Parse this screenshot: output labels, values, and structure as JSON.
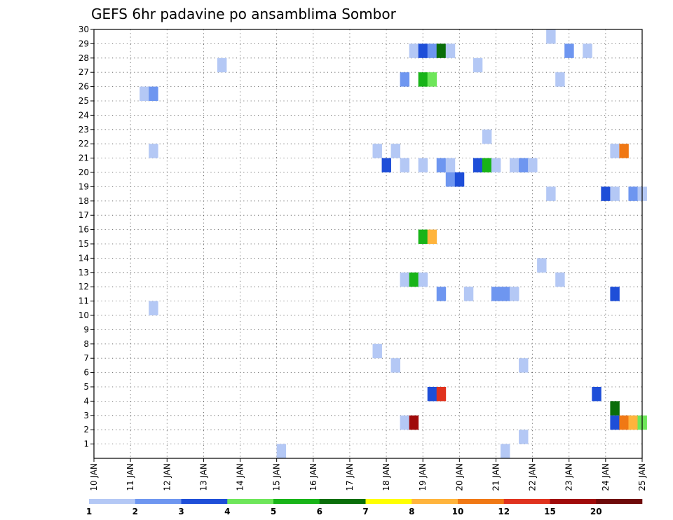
{
  "chart_data": {
    "type": "heatmap",
    "title": "GEFS 6hr padavine po ansamblima Sombor",
    "x_tick_labels": [
      "10 JAN",
      "11 JAN",
      "12 JAN",
      "13 JAN",
      "14 JAN",
      "15 JAN",
      "16 JAN",
      "17 JAN",
      "18 JAN",
      "19 JAN",
      "20 JAN",
      "21 JAN",
      "22 JAN",
      "23 JAN",
      "24 JAN",
      "25 JAN"
    ],
    "y_tick_labels": [
      "1",
      "2",
      "3",
      "4",
      "5",
      "6",
      "7",
      "8",
      "9",
      "10",
      "11",
      "12",
      "13",
      "14",
      "15",
      "16",
      "17",
      "18",
      "19",
      "20",
      "21",
      "22",
      "23",
      "24",
      "25",
      "26",
      "27",
      "28",
      "29",
      "30"
    ],
    "xlim": [
      0,
      60
    ],
    "ylim": [
      0,
      30
    ],
    "grid": true,
    "legend": {
      "position": "bottom",
      "colors": [
        "#b4c8f5",
        "#6e96f0",
        "#1e4ed8",
        "#6ee65a",
        "#18b418",
        "#0a6e0a",
        "#ffff00",
        "#ffb43c",
        "#f07814",
        "#e0321e",
        "#a00a0a",
        "#6e0a0a"
      ],
      "labels": [
        "1",
        "2",
        "3",
        "4",
        "5",
        "6",
        "7",
        "8",
        "10",
        "12",
        "15",
        "20"
      ]
    },
    "cells": [
      {
        "x": 5.0,
        "y": 25,
        "c": 0
      },
      {
        "x": 6.0,
        "y": 25,
        "c": 1
      },
      {
        "x": 6.0,
        "y": 21,
        "c": 0
      },
      {
        "x": 6.0,
        "y": 10,
        "c": 0
      },
      {
        "x": 13.5,
        "y": 27,
        "c": 0
      },
      {
        "x": 20.0,
        "y": 0,
        "c": 0
      },
      {
        "x": 30.5,
        "y": 21,
        "c": 0
      },
      {
        "x": 30.5,
        "y": 7,
        "c": 0
      },
      {
        "x": 31.5,
        "y": 20,
        "c": 2
      },
      {
        "x": 32.5,
        "y": 21,
        "c": 0
      },
      {
        "x": 32.5,
        "y": 6,
        "c": 0
      },
      {
        "x": 33.5,
        "y": 26,
        "c": 1
      },
      {
        "x": 33.5,
        "y": 20,
        "c": 0
      },
      {
        "x": 33.5,
        "y": 12,
        "c": 0
      },
      {
        "x": 33.5,
        "y": 2,
        "c": 0
      },
      {
        "x": 34.5,
        "y": 28,
        "c": 0
      },
      {
        "x": 34.5,
        "y": 12,
        "c": 4
      },
      {
        "x": 34.5,
        "y": 2,
        "c": 10
      },
      {
        "x": 35.5,
        "y": 28,
        "c": 2
      },
      {
        "x": 35.5,
        "y": 26,
        "c": 4
      },
      {
        "x": 35.5,
        "y": 20,
        "c": 0
      },
      {
        "x": 35.5,
        "y": 15,
        "c": 4
      },
      {
        "x": 35.5,
        "y": 12,
        "c": 0
      },
      {
        "x": 36.5,
        "y": 28,
        "c": 1
      },
      {
        "x": 36.5,
        "y": 26,
        "c": 3
      },
      {
        "x": 36.5,
        "y": 15,
        "c": 7
      },
      {
        "x": 36.5,
        "y": 4,
        "c": 2
      },
      {
        "x": 37.5,
        "y": 28,
        "c": 5
      },
      {
        "x": 37.5,
        "y": 20,
        "c": 1
      },
      {
        "x": 37.5,
        "y": 11,
        "c": 1
      },
      {
        "x": 37.5,
        "y": 4,
        "c": 9
      },
      {
        "x": 38.5,
        "y": 28,
        "c": 0
      },
      {
        "x": 38.5,
        "y": 20,
        "c": 0
      },
      {
        "x": 38.5,
        "y": 19,
        "c": 1
      },
      {
        "x": 39.5,
        "y": 19,
        "c": 2
      },
      {
        "x": 40.5,
        "y": 11,
        "c": 0
      },
      {
        "x": 41.5,
        "y": 27,
        "c": 0
      },
      {
        "x": 41.5,
        "y": 20,
        "c": 2
      },
      {
        "x": 42.5,
        "y": 22,
        "c": 0
      },
      {
        "x": 42.5,
        "y": 20,
        "c": 4
      },
      {
        "x": 43.5,
        "y": 20,
        "c": 0
      },
      {
        "x": 43.5,
        "y": 11,
        "c": 1
      },
      {
        "x": 44.5,
        "y": 11,
        "c": 1
      },
      {
        "x": 44.5,
        "y": 0,
        "c": 0
      },
      {
        "x": 45.5,
        "y": 20,
        "c": 0
      },
      {
        "x": 45.5,
        "y": 11,
        "c": 0
      },
      {
        "x": 46.5,
        "y": 20,
        "c": 1
      },
      {
        "x": 46.5,
        "y": 6,
        "c": 0
      },
      {
        "x": 46.5,
        "y": 1,
        "c": 0
      },
      {
        "x": 47.5,
        "y": 20,
        "c": 0
      },
      {
        "x": 48.5,
        "y": 13,
        "c": 0
      },
      {
        "x": 49.5,
        "y": 29,
        "c": 0
      },
      {
        "x": 49.5,
        "y": 18,
        "c": 0
      },
      {
        "x": 50.5,
        "y": 26,
        "c": 0
      },
      {
        "x": 50.5,
        "y": 12,
        "c": 0
      },
      {
        "x": 51.5,
        "y": 28,
        "c": 1
      },
      {
        "x": 53.5,
        "y": 28,
        "c": 0
      },
      {
        "x": 54.5,
        "y": 4,
        "c": 2
      },
      {
        "x": 55.5,
        "y": 18,
        "c": 2
      },
      {
        "x": 56.5,
        "y": 21,
        "c": 0
      },
      {
        "x": 56.5,
        "y": 18,
        "c": 0
      },
      {
        "x": 56.5,
        "y": 11,
        "c": 2
      },
      {
        "x": 56.5,
        "y": 3,
        "c": 5
      },
      {
        "x": 56.5,
        "y": 2,
        "c": 2
      },
      {
        "x": 57.5,
        "y": 21,
        "c": 8
      },
      {
        "x": 57.5,
        "y": 2,
        "c": 8
      },
      {
        "x": 58.5,
        "y": 18,
        "c": 1
      },
      {
        "x": 58.5,
        "y": 2,
        "c": 7
      },
      {
        "x": 59.5,
        "y": 18,
        "c": 0
      },
      {
        "x": 59.5,
        "y": 2,
        "c": 3
      }
    ]
  }
}
